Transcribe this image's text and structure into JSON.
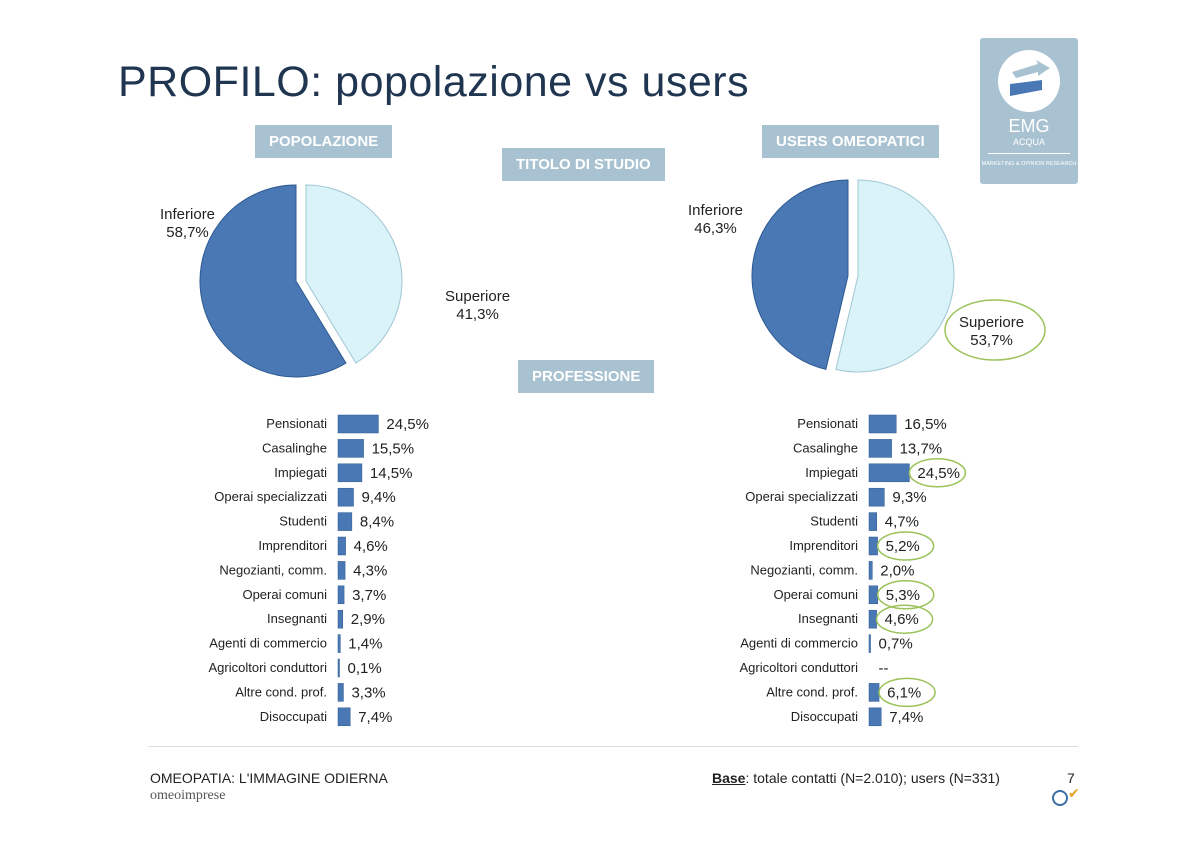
{
  "title": "PROFILO: popolazione vs users",
  "tags": {
    "left": "POPOLAZIONE",
    "right": "USERS OMEOPATICI",
    "studio": "TITOLO DI STUDIO",
    "professione": "PROFESSIONE"
  },
  "logo": {
    "name": "EMG",
    "sub": "ACQUA",
    "tagline": "MARKETING & OPINION RESEARCH"
  },
  "footer": {
    "left": "OMEOPATIA: L'IMMAGINE ODIERNA",
    "brand": "omeoimprese",
    "base_label": "Base",
    "base_text": ": totale contatti (N=2.010); users (N=331)",
    "page": "7"
  },
  "colors": {
    "dark": "#4a78b4",
    "light": "#d9f3f8",
    "ring": "#9cc35a",
    "tag": "#a9c2d2"
  },
  "chart_data": [
    {
      "type": "pie",
      "name": "popolazione",
      "slices": [
        {
          "label": "Inferiore",
          "value": 58.7,
          "text": "58,7%"
        },
        {
          "label": "Superiore",
          "value": 41.3,
          "text": "41,3%"
        }
      ]
    },
    {
      "type": "pie",
      "name": "users",
      "slices": [
        {
          "label": "Inferiore",
          "value": 46.3,
          "text": "46,3%"
        },
        {
          "label": "Superiore",
          "value": 53.7,
          "text": "53,7%",
          "highlight": true
        }
      ]
    },
    {
      "type": "bar",
      "name": "professione-popolazione",
      "categories": [
        "Pensionati",
        "Casalinghe",
        "Impiegati",
        "Operai specializzati",
        "Studenti",
        "Imprenditori",
        "Negozianti, comm.",
        "Operai comuni",
        "Insegnanti",
        "Agenti di commercio",
        "Agricoltori conduttori",
        "Altre cond. prof.",
        "Disoccupati"
      ],
      "values": [
        24.5,
        15.5,
        14.5,
        9.4,
        8.4,
        4.6,
        4.3,
        3.7,
        2.9,
        1.4,
        0.1,
        3.3,
        7.4
      ],
      "labels": [
        "24,5%",
        "15,5%",
        "14,5%",
        "9,4%",
        "8,4%",
        "4,6%",
        "4,3%",
        "3,7%",
        "2,9%",
        "1,4%",
        "0,1%",
        "3,3%",
        "7,4%"
      ]
    },
    {
      "type": "bar",
      "name": "professione-users",
      "categories": [
        "Pensionati",
        "Casalinghe",
        "Impiegati",
        "Operai specializzati",
        "Studenti",
        "Imprenditori",
        "Negozianti, comm.",
        "Operai comuni",
        "Insegnanti",
        "Agenti di commercio",
        "Agricoltori conduttori",
        "Altre cond. prof.",
        "Disoccupati"
      ],
      "values": [
        16.5,
        13.7,
        24.5,
        9.3,
        4.7,
        5.2,
        2.0,
        5.3,
        4.6,
        0.7,
        0,
        6.1,
        7.4
      ],
      "labels": [
        "16,5%",
        "13,7%",
        "24,5%",
        "9,3%",
        "4,7%",
        "5,2%",
        "2,0%",
        "5,3%",
        "4,6%",
        "0,7%",
        "--",
        "6,1%",
        "7,4%"
      ],
      "highlight": [
        false,
        false,
        true,
        false,
        false,
        true,
        false,
        true,
        true,
        false,
        false,
        true,
        false
      ]
    }
  ]
}
